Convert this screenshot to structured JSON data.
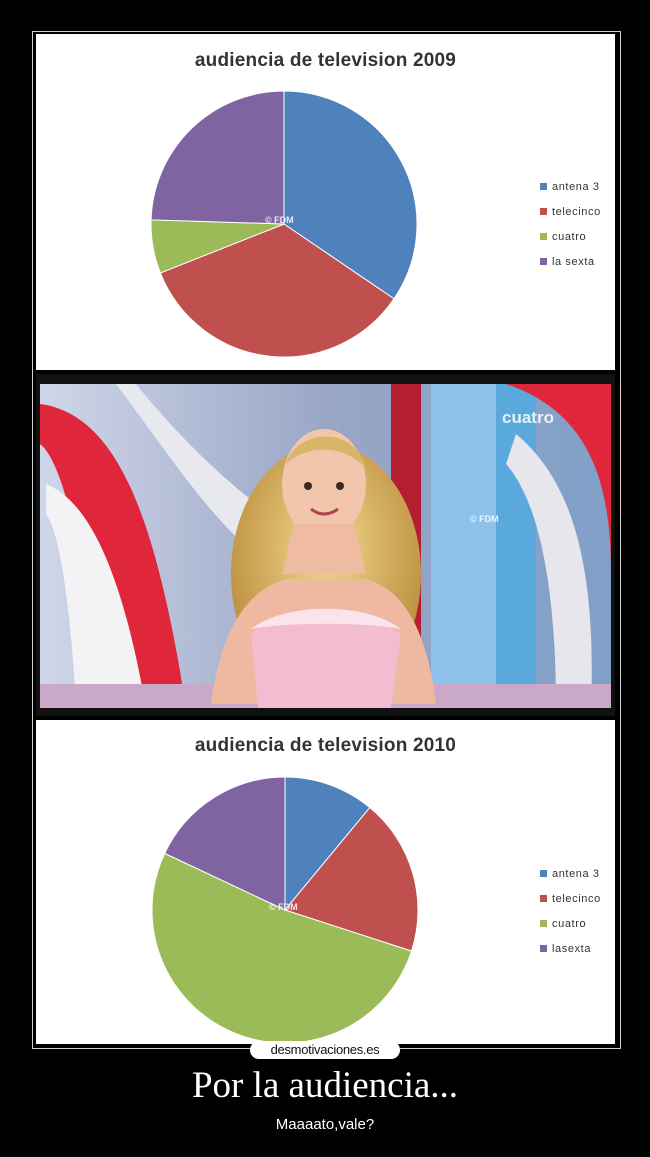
{
  "charts": {
    "chart_2009_title": "audiencia de television 2009",
    "chart_2010_title": "audiencia de television 2010",
    "watermark": "© FDM"
  },
  "photo": {
    "channel_logo": "cuatro",
    "watermark": "© FDM"
  },
  "footer": {
    "site_badge": "desmotivaciones.es",
    "title": "Por la audiencia...",
    "subtitle": "Maaaato,vale?"
  },
  "chart_data": [
    {
      "type": "pie",
      "title": "audiencia de television 2009",
      "categories": [
        "antena 3",
        "telecinco",
        "cuatro",
        "la sexta"
      ],
      "values": [
        34.5,
        34.5,
        6.5,
        24.5
      ],
      "colors": [
        "#4f81bd",
        "#c0504d",
        "#9bbb59",
        "#8064a2"
      ],
      "legend_position": "right"
    },
    {
      "type": "pie",
      "title": "audiencia de television 2010",
      "categories": [
        "antena 3",
        "telecinco",
        "cuatro",
        "lasexta"
      ],
      "values": [
        11,
        19,
        52,
        18
      ],
      "colors": [
        "#4f81bd",
        "#c0504d",
        "#9bbb59",
        "#8064a2"
      ],
      "legend_position": "right"
    }
  ]
}
